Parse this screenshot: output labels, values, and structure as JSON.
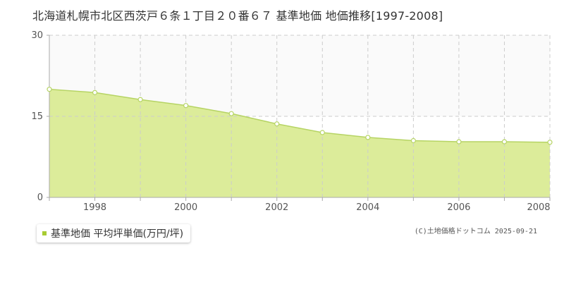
{
  "title": "北海道札幌市北区西茨戸６条１丁目２０番６７ 基準地価 地価推移[1997-2008]",
  "colors": {
    "fill": "#dcec9a",
    "line": "#b6d464",
    "marker_fill": "#ffffff",
    "marker_stroke": "#b6d464",
    "legend_swatch": "#a8cc33",
    "grid": "#cccccc",
    "highlight_band": "#fafafa"
  },
  "chart_data": {
    "type": "area",
    "title": "北海道札幌市北区西茨戸６条１丁目２０番６７ 基準地価 地価推移[1997-2008]",
    "x": [
      1997,
      1998,
      1999,
      2000,
      2001,
      2002,
      2003,
      2004,
      2005,
      2006,
      2007,
      2008
    ],
    "series": [
      {
        "name": "基準地価 平均坪単価(万円/坪)",
        "values": [
          20.0,
          19.4,
          18.1,
          17.0,
          15.5,
          13.6,
          12.0,
          11.1,
          10.5,
          10.3,
          10.3,
          10.2
        ]
      }
    ],
    "xlim": [
      1997,
      2008
    ],
    "ylim": [
      0,
      30
    ],
    "y_ticks": [
      0,
      15,
      30
    ],
    "x_tick_labels": [
      "1998",
      "2000",
      "2002",
      "2004",
      "2006",
      "2008"
    ],
    "grid": true,
    "legend_position": "bottom-left"
  },
  "legend": {
    "label": "基準地価 平均坪単価(万円/坪)"
  },
  "copyright": "(C)土地価格ドットコム 2025-09-21"
}
